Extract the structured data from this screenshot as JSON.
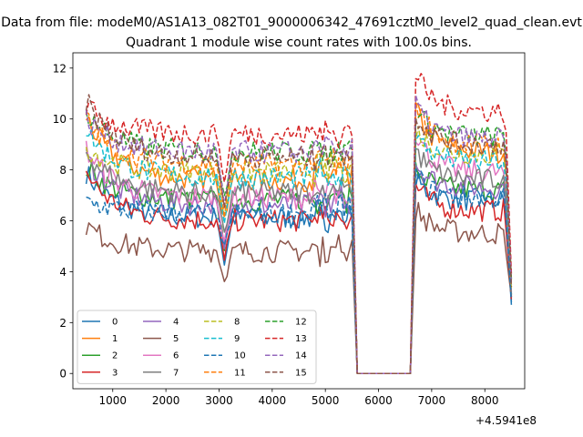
{
  "figure": {
    "suptitle": "Data from file: modeM0/AS1A13_082T01_9000006342_47691cztM0_level2_quad_clean.evt",
    "x_offset_label": "+4.5941e8"
  },
  "chart_data": {
    "type": "line",
    "title": "Quadrant 1 module wise count rates with 100.0s bins.",
    "xlabel": "",
    "ylabel": "",
    "xlim": [
      250,
      8750
    ],
    "ylim": [
      -0.6,
      12.6
    ],
    "x_ticks": [
      1000,
      2000,
      3000,
      4000,
      5000,
      6000,
      7000,
      8000
    ],
    "y_ticks": [
      0,
      2,
      4,
      6,
      8,
      10,
      12
    ],
    "grid": false,
    "legend": {
      "placement": "lower-left",
      "columns": 4
    },
    "segments": [
      {
        "x_start": 500,
        "x_end": 5500,
        "dip_at": 3100
      },
      {
        "gap_x": [
          5600,
          6600
        ]
      },
      {
        "x_start": 6700,
        "x_end": 8500
      }
    ],
    "series": [
      {
        "name": "0",
        "color": "#1f77b4",
        "dash": "solid",
        "level_a": 6.1,
        "start_a": 7.9,
        "dip": 4.3,
        "level_b": 6.8,
        "peak_b": 7.6,
        "end": 2.7
      },
      {
        "name": "1",
        "color": "#ff7f0e",
        "dash": "solid",
        "level_a": 7.6,
        "start_a": 10.1,
        "dip": 6.0,
        "level_b": 8.7,
        "peak_b": 10.4,
        "end": 3.0
      },
      {
        "name": "2",
        "color": "#2ca02c",
        "dash": "solid",
        "level_a": 6.8,
        "start_a": 8.1,
        "dip": 5.0,
        "level_b": 7.2,
        "peak_b": 8.0,
        "end": 3.1
      },
      {
        "name": "3",
        "color": "#d62728",
        "dash": "solid",
        "level_a": 6.0,
        "start_a": 7.9,
        "dip": 4.6,
        "level_b": 6.4,
        "peak_b": 7.4,
        "end": 2.9
      },
      {
        "name": "4",
        "color": "#9467bd",
        "dash": "solid",
        "level_a": 6.6,
        "start_a": 8.5,
        "dip": 5.0,
        "level_b": 7.3,
        "peak_b": 8.3,
        "end": 3.0
      },
      {
        "name": "5",
        "color": "#8c564b",
        "dash": "solid",
        "level_a": 4.8,
        "start_a": 5.8,
        "dip": 3.6,
        "level_b": 5.5,
        "peak_b": 6.5,
        "end": 3.0
      },
      {
        "name": "6",
        "color": "#e377c2",
        "dash": "solid",
        "level_a": 6.9,
        "start_a": 8.8,
        "dip": 5.2,
        "level_b": 7.9,
        "peak_b": 9.5,
        "end": 3.2
      },
      {
        "name": "7",
        "color": "#7f7f7f",
        "dash": "solid",
        "level_a": 7.1,
        "start_a": 8.7,
        "dip": 5.4,
        "level_b": 7.6,
        "peak_b": 8.8,
        "end": 3.1
      },
      {
        "name": "8",
        "color": "#bcbd22",
        "dash": "dashed",
        "level_a": 7.9,
        "start_a": 8.9,
        "dip": 6.2,
        "level_b": 8.6,
        "peak_b": 9.6,
        "end": 3.3
      },
      {
        "name": "9",
        "color": "#17becf",
        "dash": "dashed",
        "level_a": 7.7,
        "start_a": 9.6,
        "dip": 6.0,
        "level_b": 8.3,
        "peak_b": 9.4,
        "end": 3.5
      },
      {
        "name": "10",
        "color": "#1f77b4",
        "dash": "dashed",
        "level_a": 6.3,
        "start_a": 6.8,
        "dip": 4.9,
        "level_b": 6.9,
        "peak_b": 7.8,
        "end": 2.8
      },
      {
        "name": "11",
        "color": "#ff7f0e",
        "dash": "dashed",
        "level_a": 8.2,
        "start_a": 10.0,
        "dip": 6.3,
        "level_b": 9.0,
        "peak_b": 10.6,
        "end": 3.6
      },
      {
        "name": "12",
        "color": "#2ca02c",
        "dash": "dashed",
        "level_a": 8.7,
        "start_a": 10.3,
        "dip": 6.8,
        "level_b": 9.3,
        "peak_b": 10.4,
        "end": 3.7
      },
      {
        "name": "13",
        "color": "#d62728",
        "dash": "dashed",
        "level_a": 9.4,
        "start_a": 10.5,
        "dip": 7.6,
        "level_b": 10.3,
        "peak_b": 11.8,
        "end": 3.9
      },
      {
        "name": "14",
        "color": "#9467bd",
        "dash": "dashed",
        "level_a": 8.7,
        "start_a": 10.0,
        "dip": 6.6,
        "level_b": 9.2,
        "peak_b": 10.6,
        "end": 3.5
      },
      {
        "name": "15",
        "color": "#8c564b",
        "dash": "dashed",
        "level_a": 8.5,
        "start_a": 10.7,
        "dip": 6.5,
        "level_b": 9.0,
        "peak_b": 10.2,
        "end": 3.4
      }
    ]
  }
}
